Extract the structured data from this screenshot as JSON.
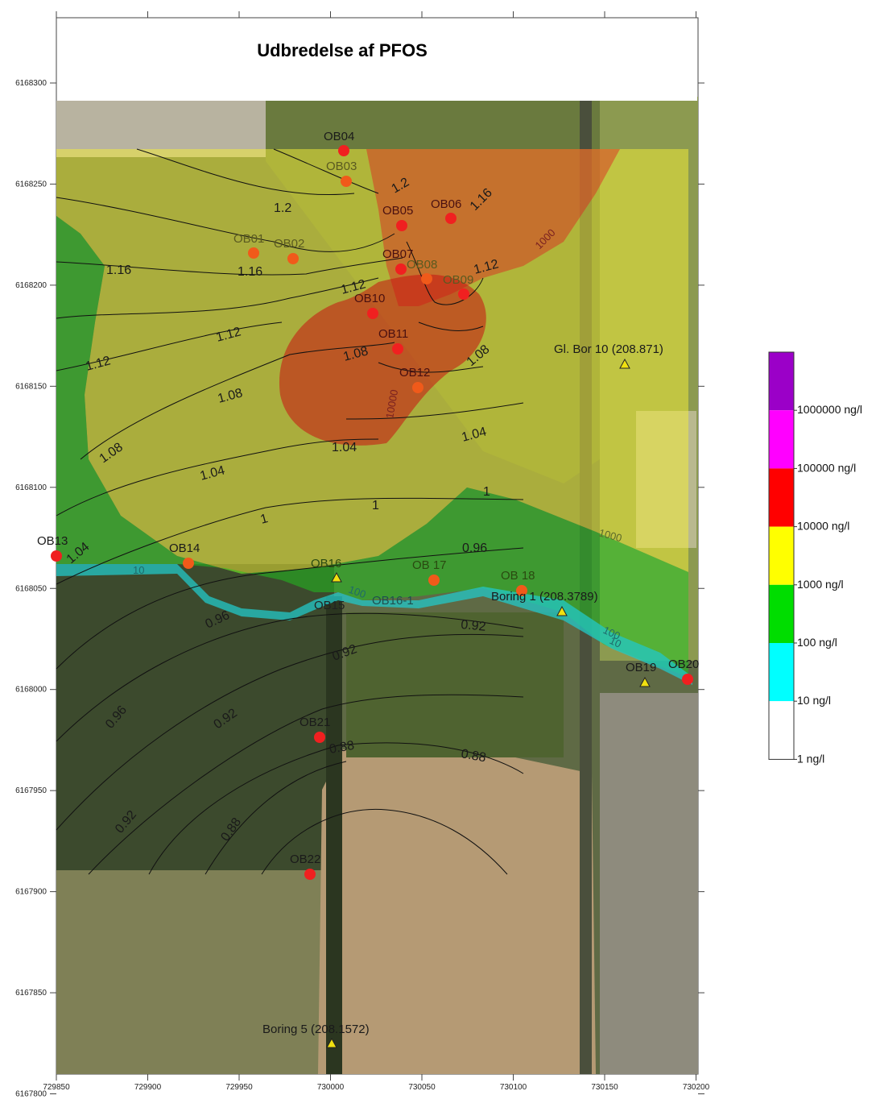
{
  "title": "Udbredelse af PFOS",
  "axes": {
    "x_ticks": [
      "729850",
      "729900",
      "729950",
      "730000",
      "730050",
      "730100",
      "730150",
      "730200"
    ],
    "y_ticks": [
      "6168300",
      "6168250",
      "6168200",
      "6168150",
      "6168100",
      "6168050",
      "6168000",
      "6167950",
      "6167900",
      "6167850",
      "6167800"
    ]
  },
  "legend": {
    "labels": [
      "1000000 ng/l",
      "100000 ng/l",
      "10000 ng/l",
      "1000 ng/l",
      "100 ng/l",
      "10 ng/l",
      "1 ng/l"
    ],
    "colors": [
      "#9b00c8",
      "#ff00ff",
      "#ff0000",
      "#ffff00",
      "#00dd00",
      "#00ffff",
      "#ffffff"
    ]
  },
  "points": {
    "OB04": "OB04",
    "OB03": "OB03",
    "OB05": "OB05",
    "OB06": "OB06",
    "OB01": "OB01",
    "OB02": "OB02",
    "OB07": "OB07",
    "OB08": "OB08",
    "OB09": "OB09",
    "OB10": "OB10",
    "OB11": "OB11",
    "OB12": "OB12",
    "OB13": "OB13",
    "OB14": "OB14",
    "OB16": "OB16",
    "OB17": "OB 17",
    "OB18": "OB 18",
    "OB15": "OB15",
    "OB16_1": "OB16-1",
    "OB19": "OB19",
    "OB20": "OB20",
    "OB21": "OB21",
    "OB22": "OB22",
    "GlBor10": "Gl. Bor 10 (208.871)",
    "Boring1": "Boring 1 (208.3789)",
    "Boring5": "Boring 5 (208.1572)"
  },
  "contour_labels": {
    "c1_2a": "1.2",
    "c1_2b": "1.2",
    "c1_16a": "1.16",
    "c1_16b": "1.16",
    "c1_16c": "1.16",
    "c1_12a": "1.12",
    "c1_12b": "1.12",
    "c1_12c": "1.12",
    "c1_12d": "1.12",
    "c1_08a": "1.08",
    "c1_08b": "1.08",
    "c1_08c": "1.08",
    "c1_08d": "1.08",
    "c1_04a": "1.04",
    "c1_04b": "1.04",
    "c1_04c": "1.04",
    "c1_04d": "1.04",
    "c1a": "1",
    "c1b": "1",
    "c1c": "1",
    "c0_96a": "0.96",
    "c0_96b": "0.96",
    "c0_96c": "0.96",
    "c0_92a": "0.92",
    "c0_92b": "0.92",
    "c0_92c": "0.92",
    "c0_92d": "0.92",
    "c0_88a": "0.88",
    "c0_88b": "0.88",
    "c0_88c": "0.88",
    "conc1000a": "1000",
    "conc1000b": "1000",
    "conc10000": "10000",
    "conc100a": "100",
    "conc100b": "100",
    "conc10a": "10",
    "conc10b": "10"
  }
}
